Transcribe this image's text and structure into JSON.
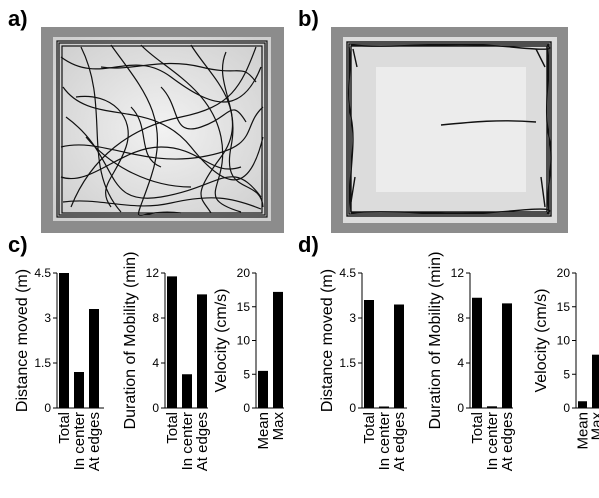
{
  "panels": {
    "a": "a)",
    "b": "b)",
    "c": "c)",
    "d": "d)"
  },
  "colors": {
    "bar": "#000000",
    "arena_border": "#8c8c8c",
    "arena_floor": "#d8d8d8",
    "track": "#111111"
  },
  "chart_data": [
    {
      "id": "c-distance",
      "type": "bar",
      "ylabel": "Distance moved (m)",
      "categories": [
        "Total",
        "In center",
        "At edges"
      ],
      "values": [
        4.5,
        1.2,
        3.3
      ],
      "ylim": [
        0,
        4.5
      ],
      "yticks": [
        "0",
        "1.5",
        "3",
        "4.5"
      ],
      "ytick_values": [
        0,
        1.5,
        3,
        4.5
      ]
    },
    {
      "id": "c-duration",
      "type": "bar",
      "ylabel": "Duration of  Mobility (min)",
      "categories": [
        "Total",
        "In center",
        "At edges"
      ],
      "values": [
        11.7,
        3.0,
        10.1
      ],
      "ylim": [
        0,
        12
      ],
      "yticks": [
        "0",
        "4",
        "8",
        "12"
      ],
      "ytick_values": [
        0,
        4,
        8,
        12
      ]
    },
    {
      "id": "c-velocity",
      "type": "bar",
      "ylabel": "Velocity (cm/s)",
      "categories": [
        "Mean",
        "Max"
      ],
      "values": [
        5.5,
        17.2
      ],
      "ylim": [
        0,
        20
      ],
      "yticks": [
        "0",
        "5",
        "10",
        "15",
        "20"
      ],
      "ytick_values": [
        0,
        5,
        10,
        15,
        20
      ]
    },
    {
      "id": "d-distance",
      "type": "bar",
      "ylabel": "Distance moved (m)",
      "categories": [
        "Total",
        "In center",
        "At edges"
      ],
      "values": [
        3.6,
        0.05,
        3.45
      ],
      "ylim": [
        0,
        4.5
      ],
      "yticks": [
        "0",
        "1.5",
        "3",
        "4.5"
      ],
      "ytick_values": [
        0,
        1.5,
        3,
        4.5
      ]
    },
    {
      "id": "d-duration",
      "type": "bar",
      "ylabel": "Duration of  Mobility (min)",
      "categories": [
        "Total",
        "In center",
        "At edges"
      ],
      "values": [
        9.8,
        0.15,
        9.3
      ],
      "ylim": [
        0,
        12
      ],
      "yticks": [
        "0",
        "4",
        "8",
        "12"
      ],
      "ytick_values": [
        0,
        4,
        8,
        12
      ]
    },
    {
      "id": "d-velocity",
      "type": "bar",
      "ylabel": "Velocity (cm/s)",
      "categories": [
        "Mean",
        "Max"
      ],
      "values": [
        1.0,
        7.9
      ],
      "ylim": [
        0,
        20
      ],
      "yticks": [
        "0",
        "5",
        "10",
        "15",
        "20"
      ],
      "ytick_values": [
        0,
        5,
        10,
        15,
        20
      ]
    }
  ]
}
